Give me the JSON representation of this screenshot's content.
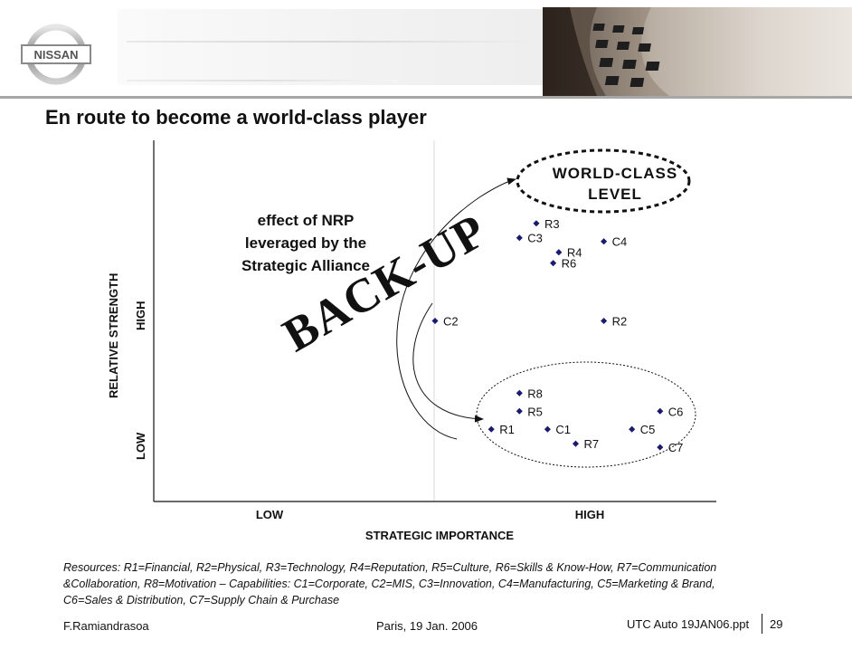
{
  "header": {
    "logo_text": "NISSAN"
  },
  "title": "En route to become a world-class player",
  "chart_data": {
    "type": "scatter",
    "xlabel": "STRATEGIC IMPORTANCE",
    "ylabel": "RELATIVE STRENGTH",
    "x_ticks": [
      "LOW",
      "HIGH"
    ],
    "y_ticks": [
      "LOW",
      "HIGH"
    ],
    "xlim": [
      0,
      1
    ],
    "ylim": [
      0,
      1
    ],
    "grid": false,
    "points": [
      {
        "label": "R3",
        "x": 0.68,
        "y": 0.77
      },
      {
        "label": "C3",
        "x": 0.65,
        "y": 0.73
      },
      {
        "label": "R4",
        "x": 0.72,
        "y": 0.69
      },
      {
        "label": "R6",
        "x": 0.71,
        "y": 0.66
      },
      {
        "label": "C4",
        "x": 0.8,
        "y": 0.72
      },
      {
        "label": "C2",
        "x": 0.5,
        "y": 0.5
      },
      {
        "label": "R2",
        "x": 0.8,
        "y": 0.5
      },
      {
        "label": "R8",
        "x": 0.65,
        "y": 0.3
      },
      {
        "label": "R5",
        "x": 0.65,
        "y": 0.25
      },
      {
        "label": "R1",
        "x": 0.6,
        "y": 0.2
      },
      {
        "label": "C1",
        "x": 0.7,
        "y": 0.2
      },
      {
        "label": "R7",
        "x": 0.75,
        "y": 0.16
      },
      {
        "label": "C5",
        "x": 0.85,
        "y": 0.2
      },
      {
        "label": "C6",
        "x": 0.9,
        "y": 0.25
      },
      {
        "label": "C7",
        "x": 0.9,
        "y": 0.15
      }
    ],
    "annotations": {
      "world_class": [
        "WORLD-CLASS",
        "LEVEL"
      ],
      "nrp": [
        "effect of NRP",
        "leveraged by the",
        "Strategic Alliance"
      ],
      "backup": "BACK-UP"
    }
  },
  "legend": {
    "line1": "Resources: R1=Financial, R2=Physical, R3=Technology, R4=Reputation, R5=Culture, R6=Skills & Know-How, R7=Communication",
    "line2": "&Collaboration, R8=Motivation – Capabilities: C1=Corporate, C2=MIS, C3=Innovation, C4=Manufacturing, C5=Marketing & Brand,",
    "line3": "C6=Sales & Distribution, C7=Supply Chain & Purchase"
  },
  "footer": {
    "author": "F.Ramiandrasoa",
    "date": "Paris, 19 Jan. 2006",
    "file": "UTC Auto 19JAN06.ppt",
    "page": "29"
  },
  "colors": {
    "marker": "#1a1a6e",
    "header_rule": "#a7a7a7"
  }
}
